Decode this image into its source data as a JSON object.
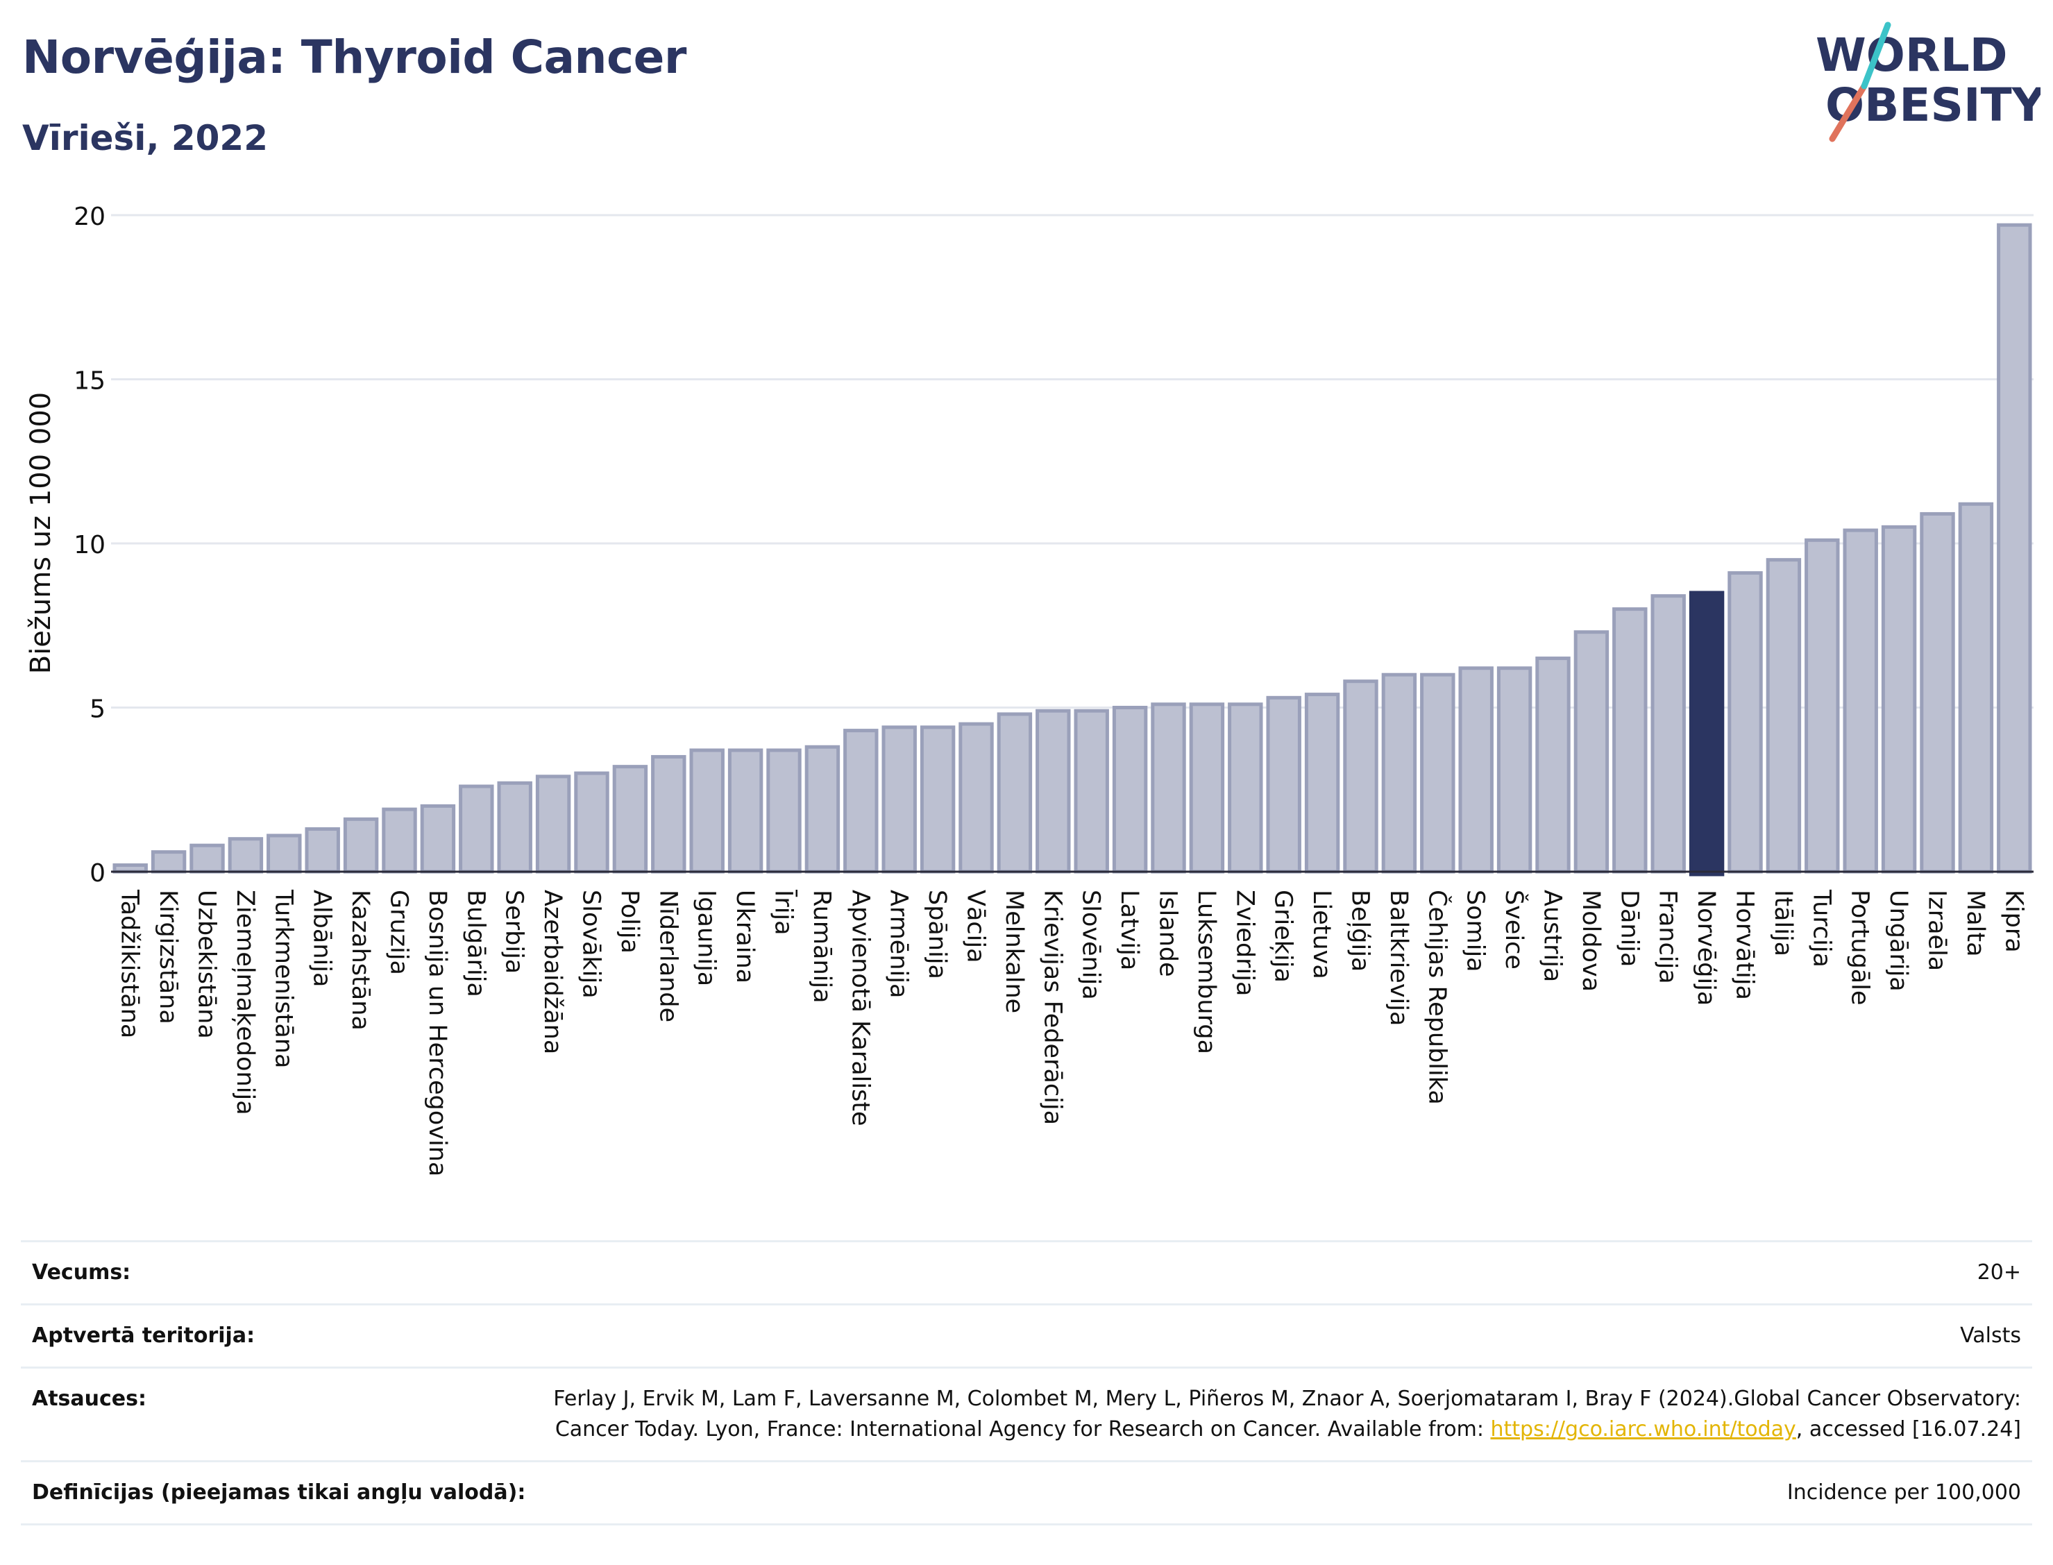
{
  "header": {
    "title": "Norvēģija: Thyroid Cancer",
    "subtitle": "Vīrieši, 2022"
  },
  "logo": {
    "line1": "WORLD",
    "line2": "OBESITY"
  },
  "colors": {
    "bar": "#bcc0d1",
    "bar_border": "#9aa0ba",
    "highlight": "#2b3561",
    "grid": "#e4e7ee",
    "text": "#111111"
  },
  "chart_data": {
    "type": "bar",
    "ylabel": "Biežums uz 100 000",
    "ylim": [
      0,
      20
    ],
    "yticks": [
      0,
      5,
      10,
      15,
      20
    ],
    "grid": true,
    "highlight": "Norvēģija",
    "categories": [
      "Tadžikistāna",
      "Kirgizstāna",
      "Uzbekistāna",
      "Ziemeļmaķedonija",
      "Turkmenistāna",
      "Albānija",
      "Kazahstāna",
      "Gruzija",
      "Bosnija un Hercegovina",
      "Bulgārija",
      "Serbija",
      "Azerbaidžāna",
      "Slovākija",
      "Polija",
      "Nīderlande",
      "Igaunija",
      "Ukraina",
      "Īrija",
      "Rumānija",
      "Apvienotā Karaliste",
      "Armēnija",
      "Spānija",
      "Vācija",
      "Melnkalne",
      "Krievijas Federācija",
      "Slovēnija",
      "Latvija",
      "Islande",
      "Luksemburga",
      "Zviedrija",
      "Grieķija",
      "Lietuva",
      "Beļģija",
      "Baltkrievija",
      "Čehijas Republika",
      "Somija",
      "Šveice",
      "Austrija",
      "Moldova",
      "Dānija",
      "Francija",
      "Norvēģija",
      "Horvātija",
      "Itālija",
      "Turcija",
      "Portugāle",
      "Ungārija",
      "Izraēla",
      "Malta",
      "Kipra"
    ],
    "values": [
      0.2,
      0.6,
      0.8,
      1.0,
      1.1,
      1.3,
      1.6,
      1.9,
      2.0,
      2.6,
      2.7,
      2.9,
      3.0,
      3.2,
      3.5,
      3.7,
      3.7,
      3.7,
      3.8,
      4.3,
      4.4,
      4.4,
      4.5,
      4.8,
      4.9,
      4.9,
      5.0,
      5.1,
      5.1,
      5.1,
      5.3,
      5.4,
      5.8,
      6.0,
      6.0,
      6.2,
      6.2,
      6.5,
      7.3,
      8.0,
      8.4,
      8.5,
      9.1,
      9.5,
      10.1,
      10.4,
      10.5,
      10.9,
      11.2,
      19.7
    ]
  },
  "info": {
    "rows": [
      {
        "label": "Vecums:",
        "value": "20+"
      },
      {
        "label": "Aptvertā teritorija:",
        "value": "Valsts"
      },
      {
        "label": "Atsauces:",
        "value": "Ferlay J, Ervik M, Lam F, Laversanne M, Colombet M, Mery L, Piñeros M, Znaor A, Soerjomataram I, Bray F (2024).Global Cancer Observatory: Cancer Today. Lyon, France: International Agency for Research on Cancer. Available from: ",
        "link": "https://gco.iarc.who.int/today",
        "suffix": ", accessed [16.07.24]"
      },
      {
        "label": "Definīcijas (pieejamas tikai angļu valodā):",
        "value": "Incidence per 100,000"
      }
    ]
  }
}
